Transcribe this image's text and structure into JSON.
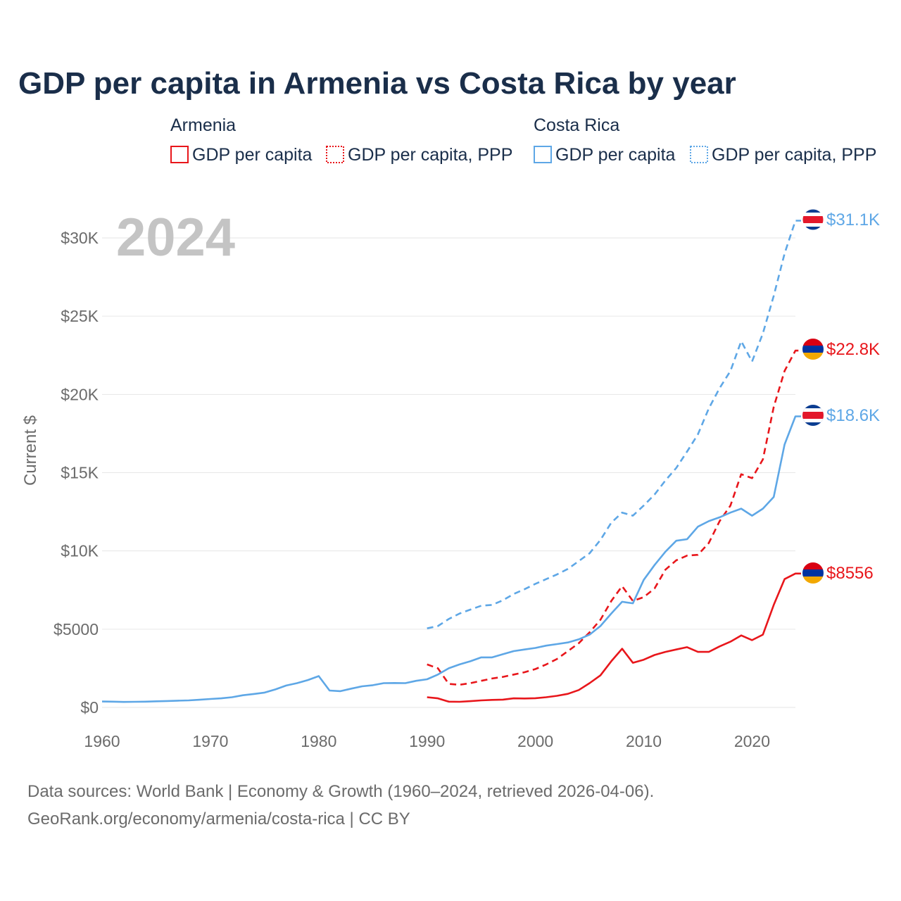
{
  "chart_data": {
    "type": "line",
    "title": "GDP per capita in Armenia vs Costa Rica by year",
    "year_display": "2024",
    "xlabel": "",
    "ylabel": "Current $",
    "xlim": [
      1960,
      2024
    ],
    "ylim": [
      0,
      31500
    ],
    "x_ticks": [
      1960,
      1970,
      1980,
      1990,
      2000,
      2010,
      2020
    ],
    "y_ticks": [
      {
        "value": 0,
        "label": "$0"
      },
      {
        "value": 5000,
        "label": "$5000"
      },
      {
        "value": 10000,
        "label": "$10K"
      },
      {
        "value": 15000,
        "label": "$15K"
      },
      {
        "value": 20000,
        "label": "$20K"
      },
      {
        "value": 25000,
        "label": "$25K"
      },
      {
        "value": 30000,
        "label": "$30K"
      }
    ],
    "grid": true,
    "legend": {
      "placement": "top",
      "groups": [
        {
          "country": "Armenia",
          "color": "#e8161b",
          "items": [
            "GDP per capita",
            "GDP per capita, PPP"
          ]
        },
        {
          "country": "Costa Rica",
          "color": "#5ea7e6",
          "items": [
            "GDP per capita",
            "GDP per capita, PPP"
          ]
        }
      ]
    },
    "series": [
      {
        "name": "Costa Rica GDP per capita, PPP",
        "country": "Costa Rica",
        "color": "#5ea7e6",
        "dashed": true,
        "end_label": "$31.1K",
        "points": [
          [
            1990,
            5050
          ],
          [
            1991,
            5200
          ],
          [
            1992,
            5650
          ],
          [
            1993,
            6000
          ],
          [
            1994,
            6250
          ],
          [
            1995,
            6500
          ],
          [
            1996,
            6550
          ],
          [
            1997,
            6850
          ],
          [
            1998,
            7250
          ],
          [
            1999,
            7550
          ],
          [
            2000,
            7900
          ],
          [
            2001,
            8200
          ],
          [
            2002,
            8500
          ],
          [
            2003,
            8850
          ],
          [
            2004,
            9350
          ],
          [
            2005,
            9850
          ],
          [
            2006,
            10700
          ],
          [
            2007,
            11800
          ],
          [
            2008,
            12450
          ],
          [
            2009,
            12250
          ],
          [
            2010,
            12900
          ],
          [
            2011,
            13600
          ],
          [
            2012,
            14500
          ],
          [
            2013,
            15300
          ],
          [
            2014,
            16350
          ],
          [
            2015,
            17450
          ],
          [
            2016,
            19100
          ],
          [
            2017,
            20400
          ],
          [
            2018,
            21500
          ],
          [
            2019,
            23400
          ],
          [
            2020,
            22100
          ],
          [
            2021,
            23900
          ],
          [
            2022,
            26300
          ],
          [
            2023,
            29000
          ],
          [
            2024,
            31100
          ]
        ]
      },
      {
        "name": "Armenia GDP per capita, PPP",
        "country": "Armenia",
        "color": "#e8161b",
        "dashed": true,
        "end_label": "$22.8K",
        "points": [
          [
            1990,
            2750
          ],
          [
            1991,
            2500
          ],
          [
            1992,
            1500
          ],
          [
            1993,
            1450
          ],
          [
            1994,
            1550
          ],
          [
            1995,
            1700
          ],
          [
            1996,
            1850
          ],
          [
            1997,
            1950
          ],
          [
            1998,
            2100
          ],
          [
            1999,
            2250
          ],
          [
            2000,
            2450
          ],
          [
            2001,
            2750
          ],
          [
            2002,
            3100
          ],
          [
            2003,
            3600
          ],
          [
            2004,
            4100
          ],
          [
            2005,
            4800
          ],
          [
            2006,
            5600
          ],
          [
            2007,
            6800
          ],
          [
            2008,
            7750
          ],
          [
            2009,
            6800
          ],
          [
            2010,
            7050
          ],
          [
            2011,
            7600
          ],
          [
            2012,
            8800
          ],
          [
            2013,
            9400
          ],
          [
            2014,
            9700
          ],
          [
            2015,
            9750
          ],
          [
            2016,
            10500
          ],
          [
            2017,
            11900
          ],
          [
            2018,
            12900
          ],
          [
            2019,
            14900
          ],
          [
            2020,
            14650
          ],
          [
            2021,
            15850
          ],
          [
            2022,
            19200
          ],
          [
            2023,
            21500
          ],
          [
            2024,
            22800
          ]
        ]
      },
      {
        "name": "Costa Rica GDP per capita",
        "country": "Costa Rica",
        "color": "#5ea7e6",
        "dashed": false,
        "end_label": "$18.6K",
        "points": [
          [
            1960,
            380
          ],
          [
            1961,
            370
          ],
          [
            1962,
            350
          ],
          [
            1963,
            360
          ],
          [
            1964,
            370
          ],
          [
            1965,
            390
          ],
          [
            1966,
            410
          ],
          [
            1967,
            430
          ],
          [
            1968,
            450
          ],
          [
            1969,
            490
          ],
          [
            1970,
            540
          ],
          [
            1971,
            580
          ],
          [
            1972,
            650
          ],
          [
            1973,
            780
          ],
          [
            1974,
            860
          ],
          [
            1975,
            950
          ],
          [
            1976,
            1150
          ],
          [
            1977,
            1400
          ],
          [
            1978,
            1550
          ],
          [
            1979,
            1750
          ],
          [
            1980,
            2000
          ],
          [
            1981,
            1080
          ],
          [
            1982,
            1040
          ],
          [
            1983,
            1200
          ],
          [
            1984,
            1350
          ],
          [
            1985,
            1420
          ],
          [
            1986,
            1550
          ],
          [
            1987,
            1560
          ],
          [
            1988,
            1550
          ],
          [
            1989,
            1700
          ],
          [
            1990,
            1800
          ],
          [
            1991,
            2100
          ],
          [
            1992,
            2500
          ],
          [
            1993,
            2750
          ],
          [
            1994,
            2950
          ],
          [
            1995,
            3200
          ],
          [
            1996,
            3200
          ],
          [
            1997,
            3400
          ],
          [
            1998,
            3600
          ],
          [
            1999,
            3700
          ],
          [
            2000,
            3800
          ],
          [
            2001,
            3950
          ],
          [
            2002,
            4050
          ],
          [
            2003,
            4150
          ],
          [
            2004,
            4350
          ],
          [
            2005,
            4650
          ],
          [
            2006,
            5200
          ],
          [
            2007,
            6000
          ],
          [
            2008,
            6750
          ],
          [
            2009,
            6650
          ],
          [
            2010,
            8150
          ],
          [
            2011,
            9100
          ],
          [
            2012,
            9950
          ],
          [
            2013,
            10650
          ],
          [
            2014,
            10750
          ],
          [
            2015,
            11550
          ],
          [
            2016,
            11900
          ],
          [
            2017,
            12150
          ],
          [
            2018,
            12450
          ],
          [
            2019,
            12700
          ],
          [
            2020,
            12250
          ],
          [
            2021,
            12700
          ],
          [
            2022,
            13450
          ],
          [
            2023,
            16800
          ],
          [
            2024,
            18600
          ]
        ]
      },
      {
        "name": "Armenia GDP per capita",
        "country": "Armenia",
        "color": "#e8161b",
        "dashed": false,
        "end_label": "$8556",
        "points": [
          [
            1990,
            650
          ],
          [
            1991,
            580
          ],
          [
            1992,
            370
          ],
          [
            1993,
            360
          ],
          [
            1994,
            400
          ],
          [
            1995,
            450
          ],
          [
            1996,
            480
          ],
          [
            1997,
            500
          ],
          [
            1998,
            580
          ],
          [
            1999,
            570
          ],
          [
            2000,
            590
          ],
          [
            2001,
            650
          ],
          [
            2002,
            740
          ],
          [
            2003,
            870
          ],
          [
            2004,
            1110
          ],
          [
            2005,
            1550
          ],
          [
            2006,
            2050
          ],
          [
            2007,
            2950
          ],
          [
            2008,
            3750
          ],
          [
            2009,
            2850
          ],
          [
            2010,
            3050
          ],
          [
            2011,
            3350
          ],
          [
            2012,
            3550
          ],
          [
            2013,
            3700
          ],
          [
            2014,
            3850
          ],
          [
            2015,
            3550
          ],
          [
            2016,
            3550
          ],
          [
            2017,
            3900
          ],
          [
            2018,
            4200
          ],
          [
            2019,
            4600
          ],
          [
            2020,
            4300
          ],
          [
            2021,
            4650
          ],
          [
            2022,
            6550
          ],
          [
            2023,
            8200
          ],
          [
            2024,
            8556
          ]
        ]
      }
    ],
    "source_line": "Data sources: World Bank | Economy & Growth (1960–2024, retrieved 2026-04-06).",
    "credit_line": "GeoRank.org/economy/armenia/costa-rica | CC BY"
  }
}
